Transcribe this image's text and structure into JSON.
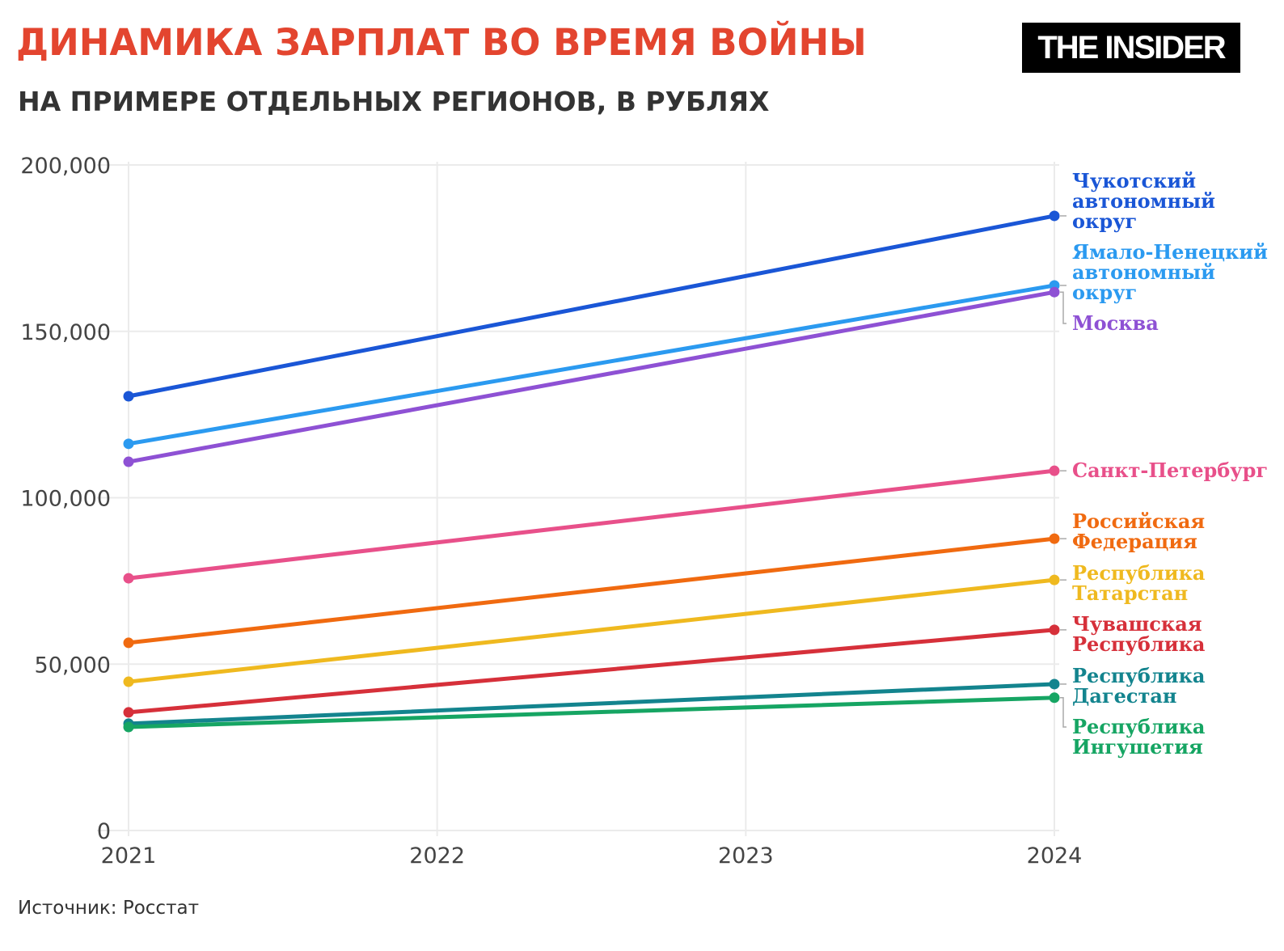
{
  "header": {
    "title": "ДИНАМИКА ЗАРПЛАТ ВО ВРЕМЯ ВОЙНЫ",
    "subtitle": "НА ПРИМЕРЕ ОТДЕЛЬНЫХ РЕГИОНОВ, В РУБЛЯХ",
    "logo": "THE INSIDER"
  },
  "footer": {
    "source": "Источник: Росстат"
  },
  "chart_data": {
    "type": "line",
    "title": "ДИНАМИКА ЗАРПЛАТ ВО ВРЕМЯ ВОЙНЫ",
    "subtitle": "НА ПРИМЕРЕ ОТДЕЛЬНЫХ РЕГИОНОВ, В РУБЛЯХ",
    "x": [
      2021,
      2024
    ],
    "xticks": [
      "2021",
      "2022",
      "2023",
      "2024"
    ],
    "xlim": [
      2021,
      2024
    ],
    "yticks": [
      "0",
      "50,000",
      "100,000",
      "150,000",
      "200,000"
    ],
    "ylim": [
      0,
      200000
    ],
    "grid": true,
    "legend": "direct labels right",
    "series": [
      {
        "name": "Чукотский автономный округ",
        "label_lines": [
          "Чукотский",
          "автономный",
          "округ"
        ],
        "color": "#1a56d6",
        "values": [
          130500,
          184700
        ]
      },
      {
        "name": "Ямало-Ненецкий автономный округ",
        "label_lines": [
          "Ямало-Ненецкий",
          "автономный",
          "округ"
        ],
        "color": "#2b9af0",
        "values": [
          116200,
          163800
        ]
      },
      {
        "name": "Москва",
        "label_lines": [
          "Москва"
        ],
        "color": "#8e51d4",
        "values": [
          110800,
          161800
        ]
      },
      {
        "name": "Санкт-Петербург",
        "label_lines": [
          "Санкт-Петербург"
        ],
        "color": "#e8508a",
        "values": [
          75800,
          108100
        ]
      },
      {
        "name": "Российская Федерация",
        "label_lines": [
          "Российская",
          "Федерация"
        ],
        "color": "#f06a10",
        "values": [
          56400,
          87700
        ]
      },
      {
        "name": "Республика Татарстан",
        "label_lines": [
          "Республика",
          "Татарстан"
        ],
        "color": "#efb91f",
        "values": [
          44700,
          75300
        ]
      },
      {
        "name": "Чувашская Республика",
        "label_lines": [
          "Чувашская",
          "Республика"
        ],
        "color": "#d6303a",
        "values": [
          35500,
          60300
        ]
      },
      {
        "name": "Республика Дагестан",
        "label_lines": [
          "Республика",
          "Дагестан"
        ],
        "color": "#13848e",
        "values": [
          32100,
          44000
        ]
      },
      {
        "name": "Республика Ингушетия",
        "label_lines": [
          "Республика",
          "Ингушетия"
        ],
        "color": "#16a563",
        "values": [
          31100,
          39900
        ]
      }
    ]
  }
}
